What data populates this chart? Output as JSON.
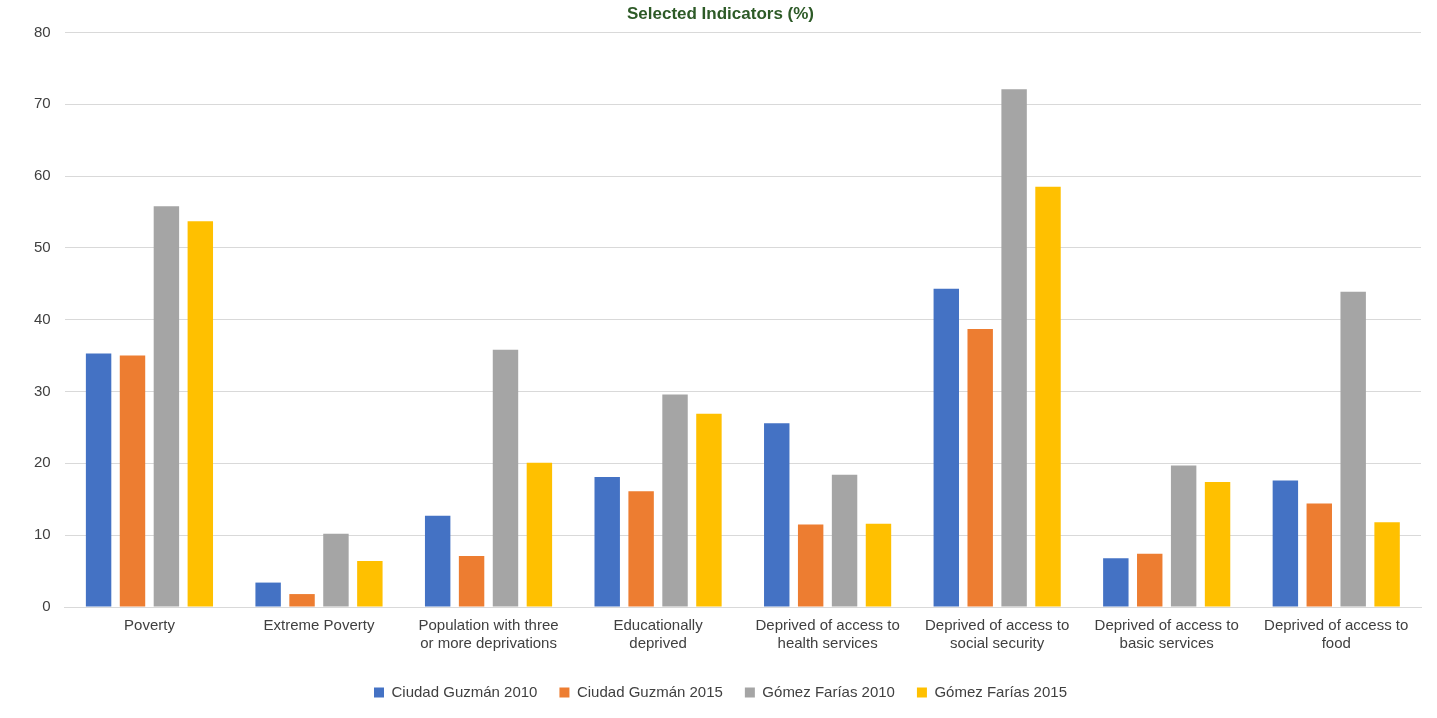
{
  "chart_data": {
    "type": "bar",
    "title": "Selected Indicators (%)",
    "categories": [
      "Poverty",
      "Extreme Poverty",
      "Population with three or more deprivations",
      "Educationally deprived",
      "Deprived of access to health services",
      "Deprived of access to social security",
      "Deprived of access to basic services",
      "Deprived of access to food"
    ],
    "series": [
      {
        "name": "Ciudad Guzmán 2010",
        "color": "#4472c4",
        "values": [
          35.3,
          3.4,
          12.7,
          18.1,
          25.6,
          44.3,
          6.8,
          17.6
        ]
      },
      {
        "name": "Ciudad Guzmán 2015",
        "color": "#ed7d31",
        "values": [
          35.0,
          1.8,
          7.1,
          16.1,
          11.5,
          38.7,
          7.4,
          14.4
        ]
      },
      {
        "name": "Gómez Farías 2010",
        "color": "#a5a5a5",
        "values": [
          55.8,
          10.2,
          35.8,
          29.6,
          18.4,
          72.1,
          19.7,
          43.9
        ]
      },
      {
        "name": "Gómez Farías 2015",
        "color": "#ffc000",
        "values": [
          53.7,
          6.4,
          20.1,
          26.9,
          11.6,
          58.5,
          17.4,
          11.8
        ]
      }
    ],
    "ylim": [
      0,
      80
    ],
    "yticks": [
      0,
      10,
      20,
      30,
      40,
      50,
      60,
      70,
      80
    ],
    "grid": "y",
    "legend": "bottom"
  }
}
